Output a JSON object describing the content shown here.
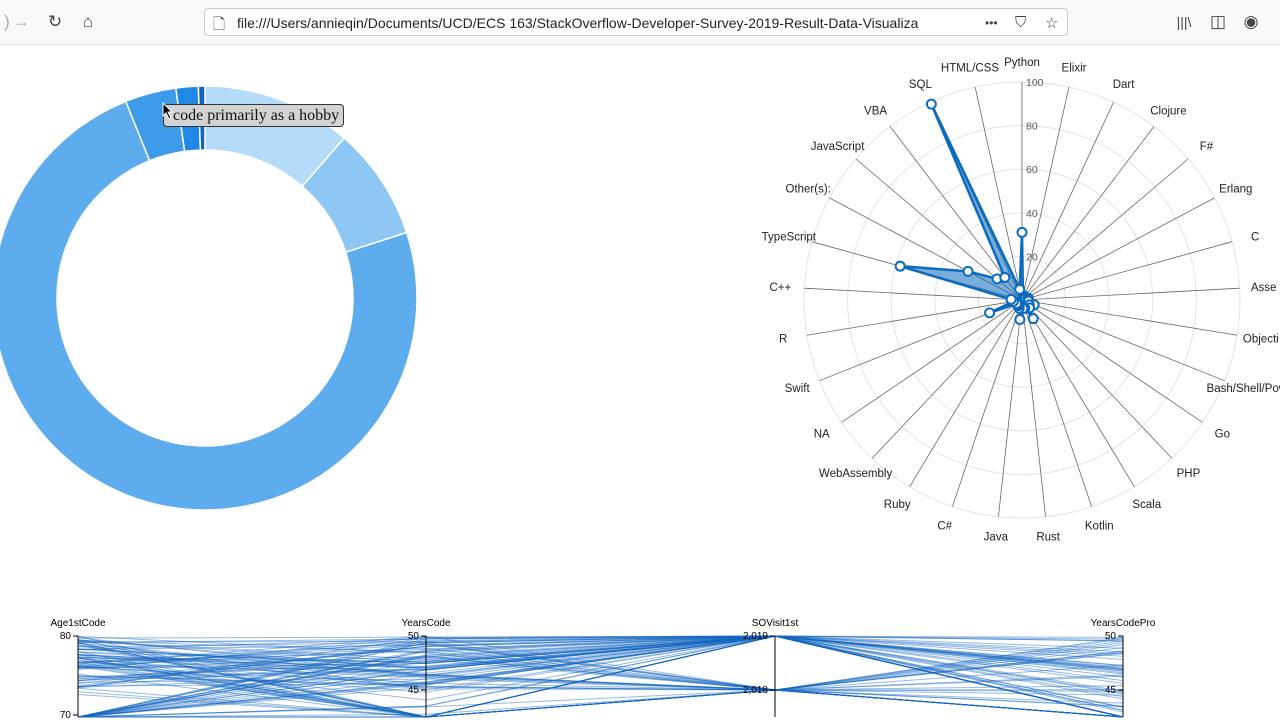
{
  "browser": {
    "url": "file:///Users/annieqin/Documents/UCD/ECS 163/StackOverflow-Developer-Survey-2019-Result-Data-Visualiza",
    "icons": [
      "back-arrow-icon",
      "forward-arrow-icon",
      "reload-icon",
      "home-icon",
      "page-icon",
      "more-icon",
      "pocket-icon",
      "star-icon",
      "library-icon",
      "sidebar-icon",
      "account-icon"
    ],
    "more_label": "•••"
  },
  "tooltip": {
    "text": "code primarily as a hobby"
  },
  "colors": {
    "accent": "#0b6bbf",
    "donut": [
      "#b4dbf7",
      "#8ec6f4",
      "#5cacee",
      "#3d9be9",
      "#1f88e5",
      "#1565c0"
    ]
  },
  "chart_data": [
    {
      "type": "pie",
      "variant": "donut",
      "values_percent": [
        11.4,
        8.6,
        73.9,
        3.9,
        1.7,
        0.5
      ]
    },
    {
      "type": "radar",
      "rlim": [
        0,
        100
      ],
      "r_ticks": [
        "20",
        "40",
        "60",
        "80",
        "100"
      ],
      "axes": [
        "Python",
        "Elixir",
        "Dart",
        "Clojure",
        "F#",
        "Erlang",
        "C",
        "Asse",
        "Objecti",
        "Bash/Shell/Pow",
        "Go",
        "PHP",
        "Scala",
        "Kotlin",
        "Rust",
        "Java",
        "C#",
        "Ruby",
        "WebAssembly",
        "NA",
        "Swift",
        "R",
        "C++",
        "TypeScript",
        "Other(s):",
        "JavaScript",
        "VBA",
        "SQL",
        "HTML/CSS"
      ],
      "values": [
        31,
        2,
        2,
        2,
        2,
        2,
        3,
        3,
        3,
        6,
        4,
        5,
        10,
        4,
        4,
        9,
        4,
        3,
        3,
        3,
        16,
        4,
        5,
        58,
        28,
        15,
        13,
        99,
        5
      ]
    },
    {
      "type": "parallel-coordinates",
      "axes": [
        {
          "name": "Age1stCode",
          "ticks": [
            "80",
            "70"
          ]
        },
        {
          "name": "YearsCode",
          "ticks": [
            "50",
            "45"
          ]
        },
        {
          "name": "SOVisit1st",
          "ticks": [
            "2,019",
            "2,018"
          ]
        },
        {
          "name": "YearsCodePro",
          "ticks": [
            "50",
            "45"
          ]
        }
      ]
    }
  ]
}
